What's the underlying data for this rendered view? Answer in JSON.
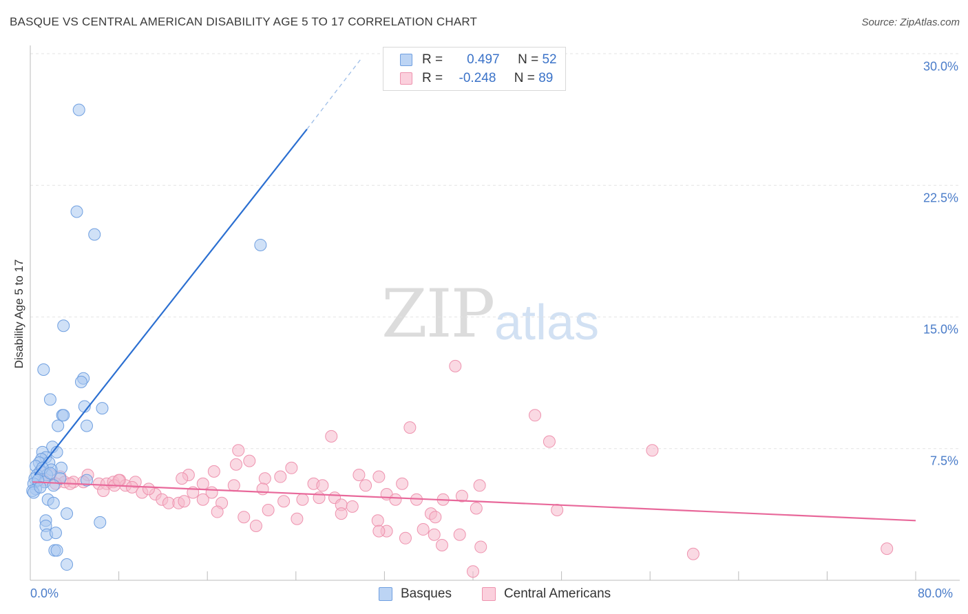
{
  "title": "BASQUE VS CENTRAL AMERICAN DISABILITY AGE 5 TO 17 CORRELATION CHART",
  "source": "Source: ZipAtlas.com",
  "watermark": {
    "zip": "ZIP",
    "atlas": "atlas"
  },
  "colors": {
    "blue_fill": "#a9c8f0",
    "blue_stroke": "#6f9fe0",
    "blue_line": "#2b6fd1",
    "pink_fill": "#f6b9cc",
    "pink_stroke": "#ee92ae",
    "pink_line": "#e8689a",
    "tick_text": "#4a7cc9",
    "grid": "#e3e3e3"
  },
  "legend": {
    "rows": [
      {
        "r_label": "R =",
        "r_value": "0.497",
        "n_label": "N =",
        "n_value": "52"
      },
      {
        "r_label": "R =",
        "r_value": "-0.248",
        "n_label": "N =",
        "n_value": "89"
      }
    ]
  },
  "bottom_legend": [
    "Basques",
    "Central Americans"
  ],
  "chart_data": {
    "type": "scatter",
    "title": "BASQUE VS CENTRAL AMERICAN DISABILITY AGE 5 TO 17 CORRELATION CHART",
    "xlabel": "",
    "ylabel": "Disability Age 5 to 17",
    "xlim": [
      0,
      80
    ],
    "ylim": [
      0,
      30
    ],
    "x_tick_labels": [
      "0.0%",
      "80.0%"
    ],
    "y_ticks": [
      7.5,
      15.0,
      22.5,
      30.0
    ],
    "y_tick_labels": [
      "7.5%",
      "15.0%",
      "22.5%",
      "30.0%"
    ],
    "grid": "horizontal dashed",
    "legend_position": "top-center",
    "series": [
      {
        "name": "Basques",
        "r": 0.497,
        "n": 52,
        "trend": {
          "x0": 0.4,
          "y0": 6.0,
          "x1": 25.0,
          "y1": 25.7,
          "dash_to_x": 30.0,
          "dash_to_y": 29.8
        },
        "points": [
          [
            4.4,
            26.8
          ],
          [
            4.2,
            21.0
          ],
          [
            5.8,
            19.7
          ],
          [
            20.8,
            19.1
          ],
          [
            3.0,
            14.5
          ],
          [
            1.2,
            12.0
          ],
          [
            4.8,
            11.5
          ],
          [
            4.6,
            11.3
          ],
          [
            1.8,
            10.3
          ],
          [
            4.9,
            9.9
          ],
          [
            6.5,
            9.8
          ],
          [
            2.9,
            9.4
          ],
          [
            3.0,
            9.4
          ],
          [
            2.5,
            8.8
          ],
          [
            5.1,
            8.8
          ],
          [
            2.0,
            7.6
          ],
          [
            2.4,
            7.3
          ],
          [
            1.1,
            7.3
          ],
          [
            1.4,
            7.0
          ],
          [
            1.0,
            6.9
          ],
          [
            0.8,
            6.7
          ],
          [
            1.7,
            6.7
          ],
          [
            0.5,
            6.5
          ],
          [
            2.8,
            6.4
          ],
          [
            1.9,
            6.3
          ],
          [
            0.9,
            6.2
          ],
          [
            1.5,
            6.0
          ],
          [
            0.6,
            6.0
          ],
          [
            0.4,
            5.8
          ],
          [
            2.7,
            5.8
          ],
          [
            5.1,
            5.7
          ],
          [
            1.3,
            5.6
          ],
          [
            0.3,
            5.5
          ],
          [
            2.1,
            5.4
          ],
          [
            0.5,
            5.2
          ],
          [
            0.2,
            5.1
          ],
          [
            0.3,
            5.0
          ],
          [
            1.6,
            4.6
          ],
          [
            2.1,
            4.4
          ],
          [
            3.3,
            3.8
          ],
          [
            1.4,
            3.4
          ],
          [
            6.3,
            3.3
          ],
          [
            1.4,
            3.1
          ],
          [
            1.5,
            2.6
          ],
          [
            2.3,
            2.7
          ],
          [
            2.2,
            1.7
          ],
          [
            2.4,
            1.7
          ],
          [
            3.3,
            0.9
          ],
          [
            0.7,
            5.7
          ],
          [
            1.1,
            6.4
          ],
          [
            0.9,
            5.3
          ],
          [
            1.8,
            6.1
          ]
        ]
      },
      {
        "name": "Central Americans",
        "r": -0.248,
        "n": 89,
        "trend": {
          "x0": 0.2,
          "y0": 5.6,
          "x1": 80.0,
          "y1": 3.4
        },
        "points": [
          [
            38.4,
            12.2
          ],
          [
            45.6,
            9.4
          ],
          [
            34.3,
            8.7
          ],
          [
            27.2,
            8.2
          ],
          [
            46.9,
            7.9
          ],
          [
            56.2,
            7.4
          ],
          [
            18.8,
            7.4
          ],
          [
            19.8,
            6.8
          ],
          [
            18.6,
            6.6
          ],
          [
            23.6,
            6.4
          ],
          [
            16.6,
            6.2
          ],
          [
            14.3,
            6.0
          ],
          [
            5.2,
            6.0
          ],
          [
            0.9,
            6.2
          ],
          [
            1.8,
            6.0
          ],
          [
            2.7,
            5.9
          ],
          [
            1.2,
            5.7
          ],
          [
            3.1,
            5.6
          ],
          [
            3.9,
            5.6
          ],
          [
            4.8,
            5.6
          ],
          [
            6.2,
            5.5
          ],
          [
            6.9,
            5.5
          ],
          [
            7.5,
            5.6
          ],
          [
            8.1,
            5.7
          ],
          [
            9.5,
            5.6
          ],
          [
            8.6,
            5.4
          ],
          [
            7.6,
            5.4
          ],
          [
            3.6,
            5.5
          ],
          [
            9.2,
            5.3
          ],
          [
            10.1,
            5.0
          ],
          [
            11.3,
            4.9
          ],
          [
            13.7,
            5.8
          ],
          [
            15.6,
            5.5
          ],
          [
            18.4,
            5.4
          ],
          [
            21.2,
            5.8
          ],
          [
            22.6,
            5.9
          ],
          [
            25.6,
            5.5
          ],
          [
            26.4,
            5.4
          ],
          [
            29.7,
            6.0
          ],
          [
            30.3,
            5.4
          ],
          [
            31.5,
            5.9
          ],
          [
            33.6,
            5.5
          ],
          [
            40.6,
            5.4
          ],
          [
            10.7,
            5.2
          ],
          [
            11.9,
            4.6
          ],
          [
            12.5,
            4.4
          ],
          [
            13.4,
            4.4
          ],
          [
            13.9,
            4.5
          ],
          [
            14.7,
            5.0
          ],
          [
            15.6,
            4.6
          ],
          [
            16.4,
            5.0
          ],
          [
            17.3,
            4.4
          ],
          [
            21.0,
            5.2
          ],
          [
            22.9,
            4.5
          ],
          [
            24.6,
            4.6
          ],
          [
            26.1,
            4.7
          ],
          [
            27.5,
            4.7
          ],
          [
            28.1,
            4.3
          ],
          [
            32.2,
            4.9
          ],
          [
            33.0,
            4.6
          ],
          [
            34.9,
            4.6
          ],
          [
            37.3,
            4.6
          ],
          [
            39.0,
            4.8
          ],
          [
            40.3,
            4.1
          ],
          [
            16.9,
            3.9
          ],
          [
            19.3,
            3.6
          ],
          [
            21.5,
            4.0
          ],
          [
            24.1,
            3.5
          ],
          [
            28.1,
            3.8
          ],
          [
            29.1,
            4.2
          ],
          [
            31.4,
            3.4
          ],
          [
            32.2,
            2.8
          ],
          [
            36.2,
            3.8
          ],
          [
            36.6,
            3.6
          ],
          [
            47.6,
            4.0
          ],
          [
            20.4,
            3.1
          ],
          [
            31.5,
            2.8
          ],
          [
            33.9,
            2.4
          ],
          [
            35.5,
            2.9
          ],
          [
            36.5,
            2.6
          ],
          [
            38.8,
            2.6
          ],
          [
            37.2,
            2.0
          ],
          [
            40.7,
            1.9
          ],
          [
            59.9,
            1.5
          ],
          [
            77.4,
            1.8
          ],
          [
            40.0,
            0.5
          ],
          [
            8.0,
            5.7
          ],
          [
            6.6,
            5.1
          ],
          [
            2.3,
            5.5
          ]
        ]
      }
    ]
  }
}
